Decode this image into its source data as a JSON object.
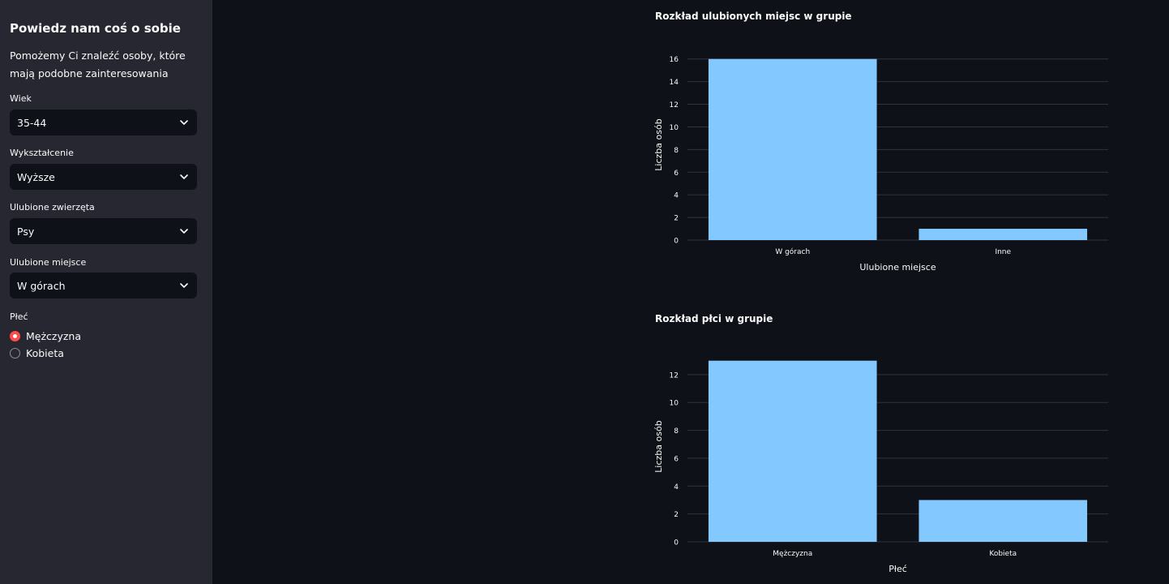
{
  "sidebar": {
    "title": "Powiedz nam coś o sobie",
    "description": "Pomożemy Ci znaleźć osoby, które mają podobne zainteresowania",
    "fields": {
      "age": {
        "label": "Wiek",
        "value": "35-44"
      },
      "education": {
        "label": "Wykształcenie",
        "value": "Wyższe"
      },
      "animals": {
        "label": "Ulubione zwierzęta",
        "value": "Psy"
      },
      "place": {
        "label": "Ulubione miejsce",
        "value": "W górach"
      }
    },
    "gender": {
      "label": "Płeć",
      "options": [
        "Mężczyzna",
        "Kobieta"
      ],
      "selected": "Mężczyzna"
    }
  },
  "colors": {
    "accent": "#ff4b4b",
    "bar": "#83c9ff",
    "sidebar_bg": "#262730",
    "main_bg": "#0e1117"
  },
  "chart_data": [
    {
      "type": "bar",
      "title": "Rozkład ulubionych miejsc w grupie",
      "categories": [
        "W górach",
        "Inne"
      ],
      "values": [
        16,
        1
      ],
      "xlabel": "Ulubione miejsce",
      "ylabel": "Liczba osób",
      "yticks": [
        0,
        2,
        4,
        6,
        8,
        10,
        12,
        14,
        16
      ],
      "ylim": [
        0,
        16.84
      ],
      "grid": true,
      "legend": "none"
    },
    {
      "type": "bar",
      "title": "Rozkład płci w grupie",
      "categories": [
        "Mężczyzna",
        "Kobieta"
      ],
      "values": [
        13,
        3
      ],
      "xlabel": "Płeć",
      "ylabel": "Liczba osób",
      "yticks": [
        0,
        2,
        4,
        6,
        8,
        10,
        12
      ],
      "ylim": [
        0,
        13.68
      ],
      "grid": true,
      "legend": "none"
    }
  ]
}
